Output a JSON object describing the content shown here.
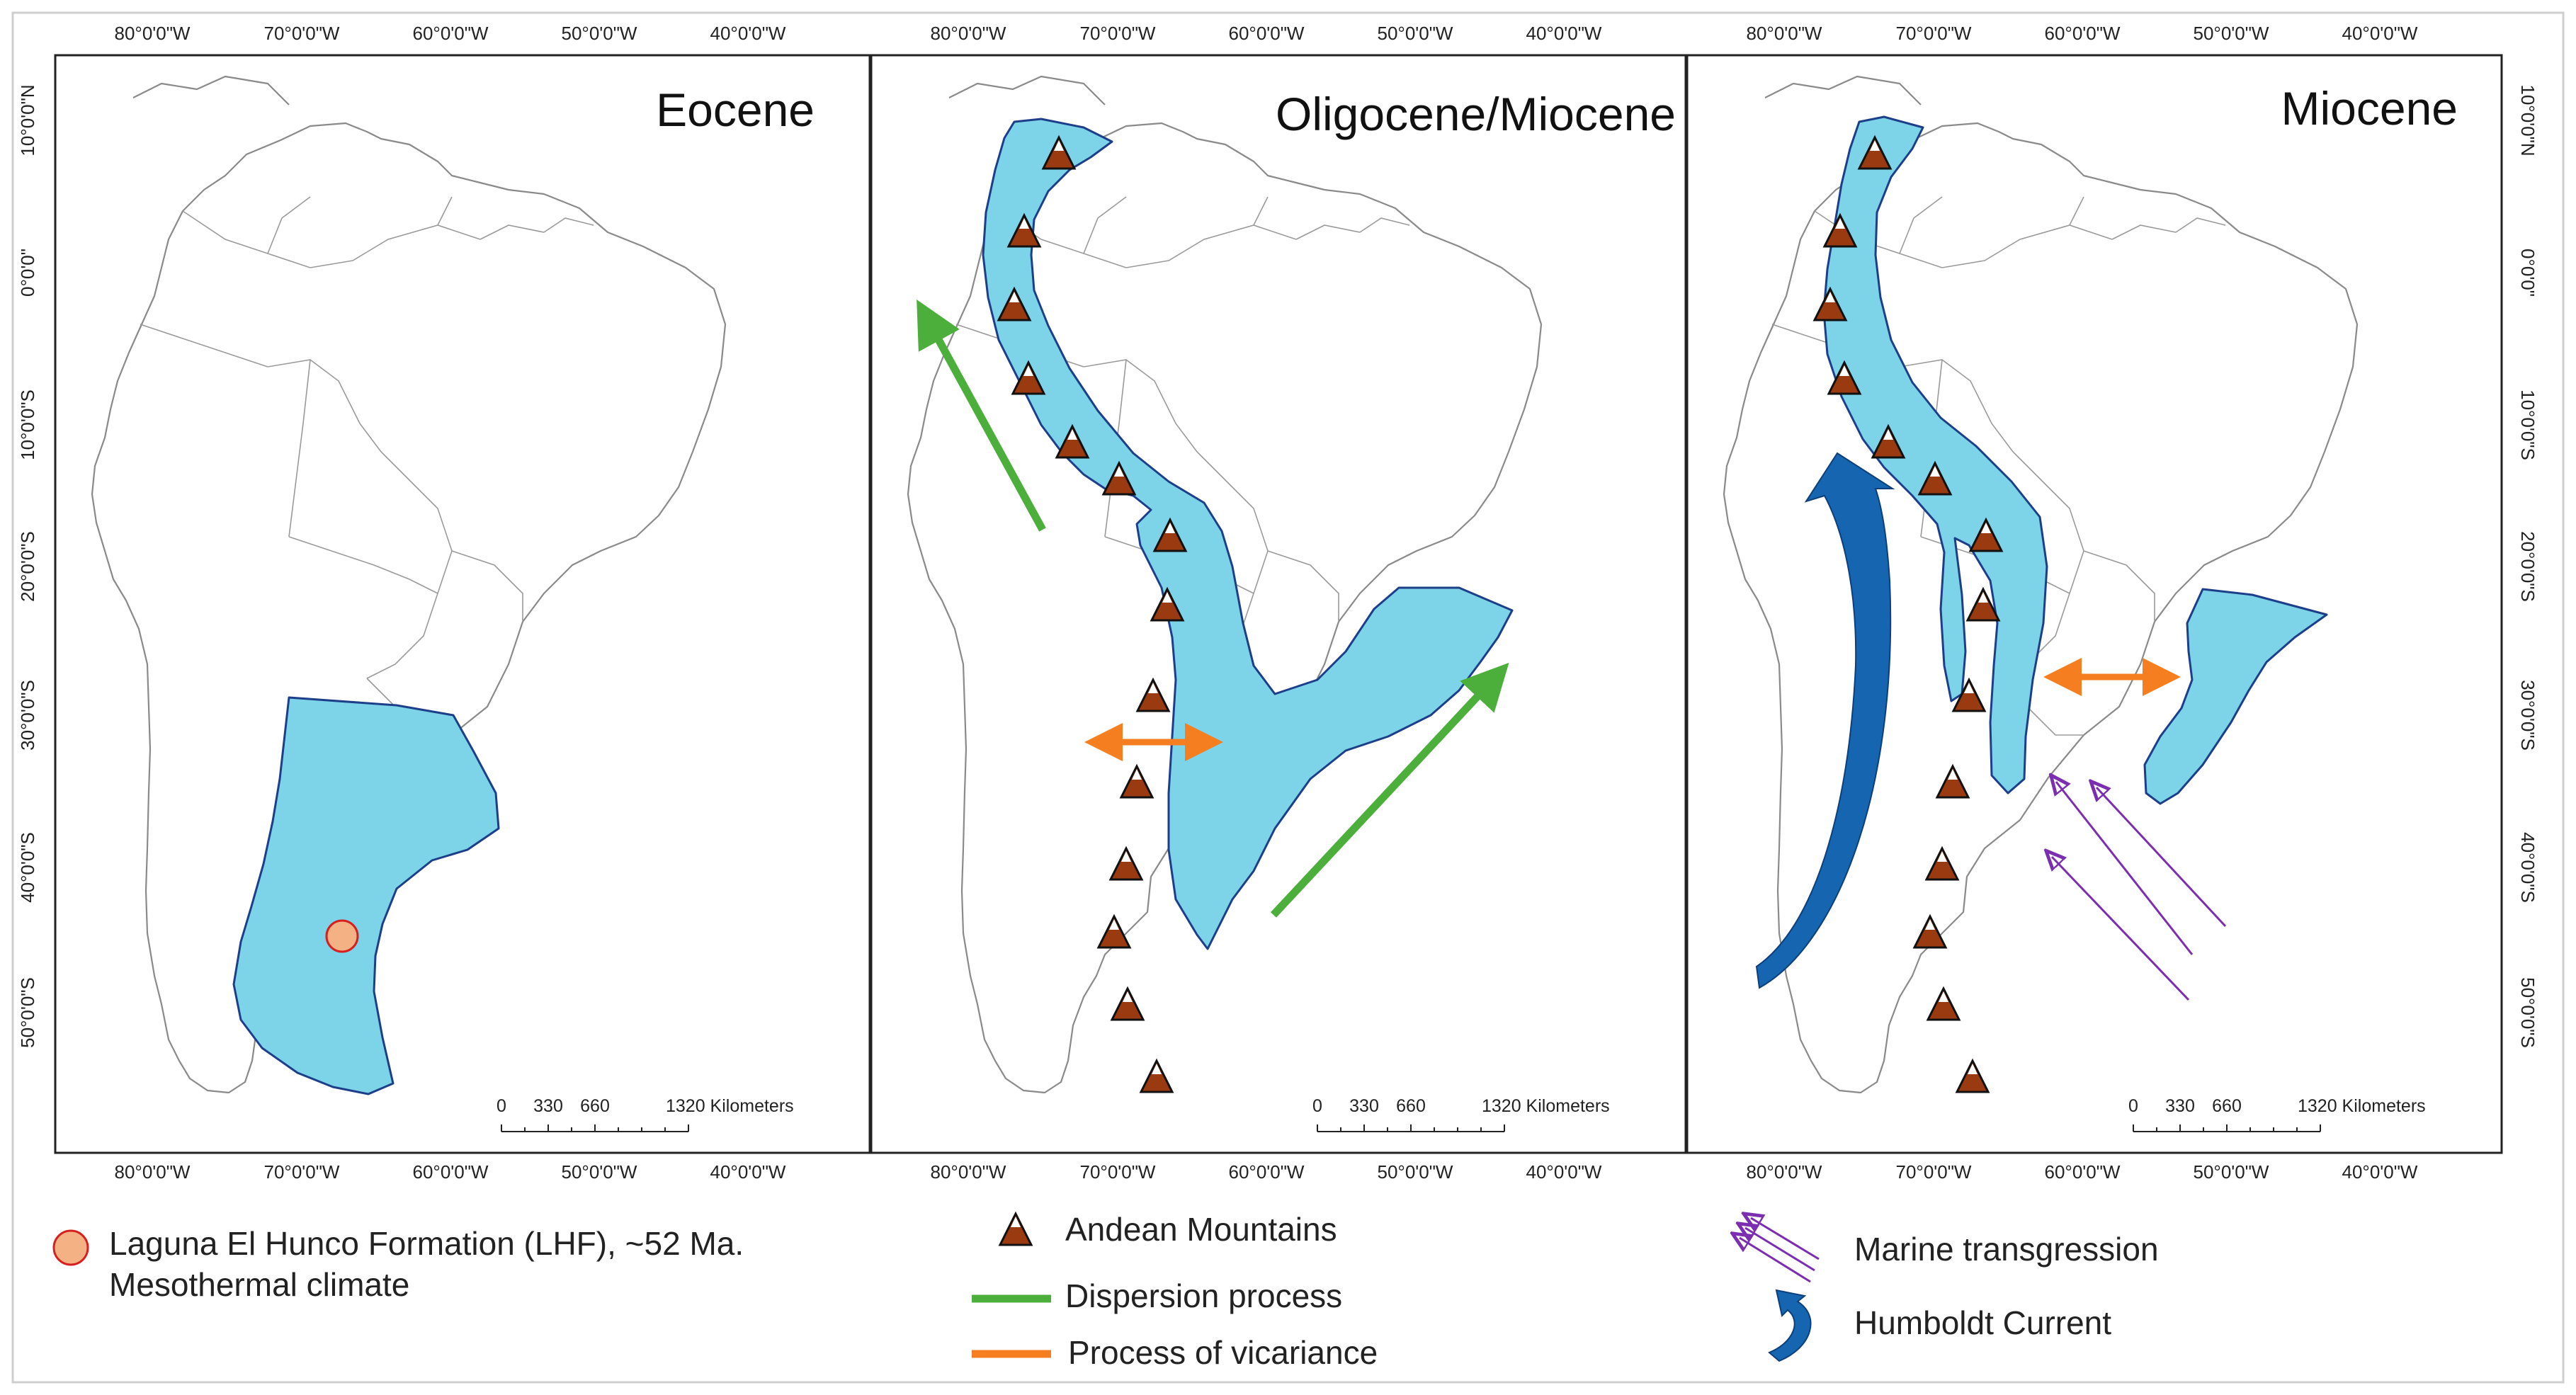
{
  "panels": [
    {
      "title": "Eocene"
    },
    {
      "title": "Oligocene/Miocene"
    },
    {
      "title": "Miocene"
    }
  ],
  "axis": {
    "longitudes": [
      "80°0'0\"W",
      "70°0'0\"W",
      "60°0'0\"W",
      "50°0'0\"W",
      "40°0'0\"W"
    ],
    "latitudes": [
      "10°0'0\"N",
      "0°0'0\"",
      "10°0'0\"S",
      "20°0'0\"S",
      "30°0'0\"S",
      "40°0'0\"S",
      "50°0'0\"S"
    ]
  },
  "scalebar": {
    "ticks": [
      "0",
      "330",
      "660",
      "1320 Kilometers"
    ]
  },
  "legend": {
    "lhf_label_line1": "Laguna El Hunco Formation (LHF), ~52 Ma.",
    "lhf_label_line2": "Mesothermal climate",
    "andean": "Andean Mountains",
    "dispersion": "Dispersion process",
    "vicariance": "Process of vicariance",
    "marine": "Marine transgression",
    "humboldt": "Humboldt Current"
  },
  "colors": {
    "basin_fill": "#7dd3e8",
    "basin_outline": "#1d3f8a",
    "mountain": "#9a3a10",
    "dispersion": "#4caf3c",
    "vicariance": "#f57f20",
    "marine": "#7b2fb0",
    "humboldt": "#1565b0",
    "lhf_marker": "#f4b183"
  },
  "icons": [
    "mountain-triangle-icon",
    "double-arrow-icon",
    "current-arrow-icon",
    "marine-arrows-icon"
  ]
}
